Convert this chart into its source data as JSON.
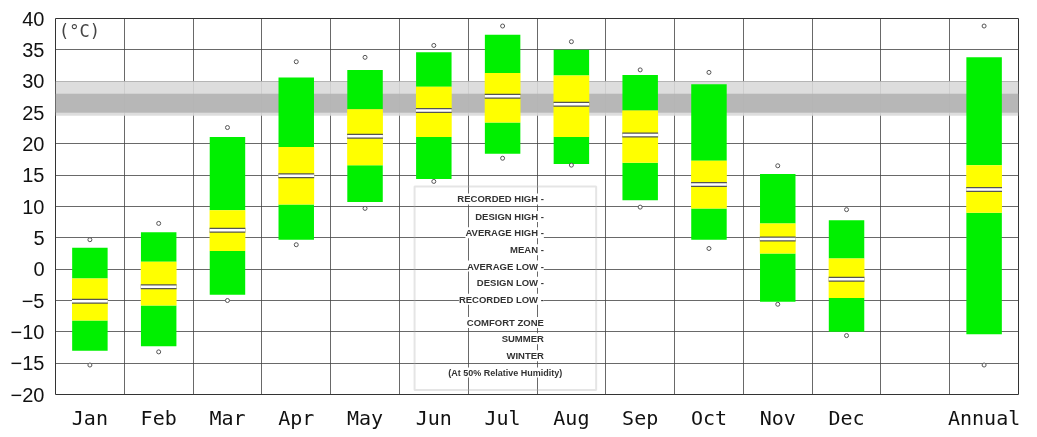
{
  "chart_data": {
    "type": "box",
    "ylabel": "(°C)",
    "categories": [
      "Jan",
      "Feb",
      "Mar",
      "Apr",
      "May",
      "Jun",
      "Jul",
      "Aug",
      "Sep",
      "Oct",
      "Nov",
      "Dec",
      null,
      "Annual"
    ],
    "series": [
      {
        "color": "#ffff00",
        "boxes": [
          {
            "low": -13.0,
            "q1": -8.2,
            "median": -5.1,
            "q3": -1.5,
            "high": 3.4,
            "outliers": [
              4.7,
              -15.3
            ]
          },
          {
            "low": -12.3,
            "q1": -5.8,
            "median": -2.8,
            "q3": 1.2,
            "high": 5.9,
            "outliers": [
              7.3,
              -13.2
            ]
          },
          {
            "low": -4.1,
            "q1": 2.9,
            "median": 6.2,
            "q3": 9.4,
            "high": 21.1,
            "outliers": [
              22.6,
              -5.0
            ]
          },
          {
            "low": 4.7,
            "q1": 10.3,
            "median": 14.9,
            "q3": 19.5,
            "high": 30.6,
            "outliers": [
              33.1,
              3.9
            ]
          },
          {
            "low": 10.7,
            "q1": 16.6,
            "median": 21.2,
            "q3": 25.5,
            "high": 31.8,
            "outliers": [
              33.8,
              9.7
            ]
          },
          {
            "low": 14.4,
            "q1": 21.1,
            "median": 25.3,
            "q3": 29.1,
            "high": 34.6,
            "outliers": [
              35.7,
              14.0
            ]
          },
          {
            "low": 18.4,
            "q1": 23.4,
            "median": 27.6,
            "q3": 31.3,
            "high": 37.4,
            "outliers": [
              38.8,
              17.7
            ]
          },
          {
            "low": 16.8,
            "q1": 21.1,
            "median": 26.3,
            "q3": 30.9,
            "high": 35.0,
            "outliers": [
              36.3,
              16.6
            ]
          },
          {
            "low": 11.0,
            "q1": 17.0,
            "median": 21.4,
            "q3": 25.3,
            "high": 31.0,
            "outliers": [
              31.8,
              9.9
            ]
          },
          {
            "low": 4.7,
            "q1": 9.7,
            "median": 13.5,
            "q3": 17.3,
            "high": 29.5,
            "outliers": [
              31.4,
              3.3
            ]
          },
          {
            "low": -5.2,
            "q1": 2.5,
            "median": 4.8,
            "q3": 7.3,
            "high": 15.2,
            "outliers": [
              16.5,
              -5.6
            ]
          },
          {
            "low": -10.0,
            "q1": -4.6,
            "median": -1.6,
            "q3": 1.7,
            "high": 7.8,
            "outliers": [
              9.5,
              -10.6
            ]
          },
          null,
          {
            "low": -10.4,
            "q1": 9.0,
            "median": 12.7,
            "q3": 16.6,
            "high": 33.8,
            "outliers": [
              38.8,
              -15.3
            ]
          }
        ]
      }
    ],
    "ylim": [
      -20,
      40
    ],
    "yticks": [
      -20,
      -15,
      -10,
      -5,
      0,
      5,
      10,
      15,
      20,
      25,
      30,
      35,
      40
    ],
    "grid": true,
    "bands": [
      {
        "axis": "y",
        "from": 24.5,
        "to": 30,
        "color": "#d9d9d9"
      },
      {
        "axis": "y",
        "from": 25,
        "to": 28,
        "color": "#b3b3b3"
      }
    ],
    "annotations": [
      "RECORDED HIGH -",
      "DESIGN HIGH -",
      "AVERAGE HIGH -",
      "MEAN -",
      "AVERAGE LOW -",
      "DESIGN LOW -",
      "RECORDED LOW -",
      "COMFORT ZONE",
      "SUMMER",
      "WINTER",
      "(At 50% Relative Humidity)"
    ]
  }
}
